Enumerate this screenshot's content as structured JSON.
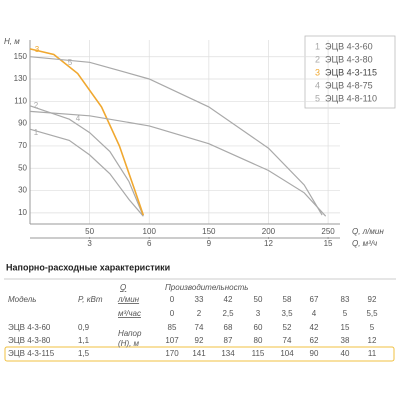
{
  "chart_data": {
    "type": "line",
    "y_label": "H, м",
    "x_label": "Q, л/мин",
    "x2_label": "Q, м³/ч",
    "xlim": [
      0,
      260
    ],
    "xticks": [
      50,
      100,
      150,
      200,
      250
    ],
    "x2lim": [
      0,
      15.6
    ],
    "x2ticks": [
      3,
      6,
      9,
      12,
      15
    ],
    "ylim": [
      0,
      165
    ],
    "yticks": [
      10,
      30,
      50,
      70,
      90,
      110,
      130,
      150
    ],
    "grid": true,
    "legend": "upper right",
    "series": [
      {
        "name": "ЭЦВ 4-3-60",
        "marker": "1",
        "color": "#a9a9a9",
        "x": [
          0,
          33,
          50,
          67,
          83,
          95
        ],
        "values": [
          85,
          75,
          62,
          45,
          22,
          7
        ]
      },
      {
        "name": "ЭЦВ 4-3-80",
        "marker": "2",
        "color": "#a9a9a9",
        "x": [
          0,
          33,
          50,
          67,
          83,
          95
        ],
        "values": [
          106,
          94,
          82,
          65,
          38,
          7
        ]
      },
      {
        "name": "ЭЦВ 4-3-115",
        "marker": "3",
        "color": "#f0a830",
        "x": [
          0,
          20,
          40,
          60,
          75,
          88,
          95
        ],
        "values": [
          157,
          152,
          135,
          105,
          70,
          30,
          8
        ]
      },
      {
        "name": "ЭЦВ 4-8-75",
        "marker": "4",
        "color": "#a9a9a9",
        "x": [
          0,
          50,
          100,
          150,
          200,
          230,
          248
        ],
        "values": [
          101,
          97,
          88,
          72,
          48,
          28,
          7
        ]
      },
      {
        "name": "ЭЦВ 4-8-110",
        "marker": "5",
        "color": "#a9a9a9",
        "x": [
          0,
          50,
          100,
          150,
          200,
          230,
          245
        ],
        "values": [
          150,
          145,
          130,
          105,
          68,
          35,
          8
        ]
      }
    ]
  },
  "table": {
    "title": "Напорно-расходные характеристики",
    "q_header": "Q",
    "flow_header": "Производительность",
    "model_header": "Модель",
    "power_header": "P, кВт",
    "unit_lpm": "л/мин",
    "unit_m3h": "м³/час",
    "flow_lpm": [
      "0",
      "33",
      "42",
      "50",
      "58",
      "67",
      "83",
      "92"
    ],
    "flow_m3h": [
      "0",
      "2",
      "2,5",
      "3",
      "3,5",
      "4",
      "5",
      "5,5"
    ],
    "head_label": "Напор (H), м",
    "rows": [
      {
        "model": "ЭЦВ 4-3-60",
        "power": "0,9",
        "head": [
          "85",
          "74",
          "68",
          "60",
          "52",
          "42",
          "15",
          "5"
        ]
      },
      {
        "model": "ЭЦВ 4-3-80",
        "power": "1,1",
        "head": [
          "107",
          "92",
          "87",
          "80",
          "74",
          "62",
          "38",
          "12"
        ]
      },
      {
        "model": "ЭЦВ 4-3-115",
        "power": "1,5",
        "head": [
          "170",
          "141",
          "134",
          "115",
          "104",
          "90",
          "40",
          "11"
        ]
      }
    ]
  }
}
